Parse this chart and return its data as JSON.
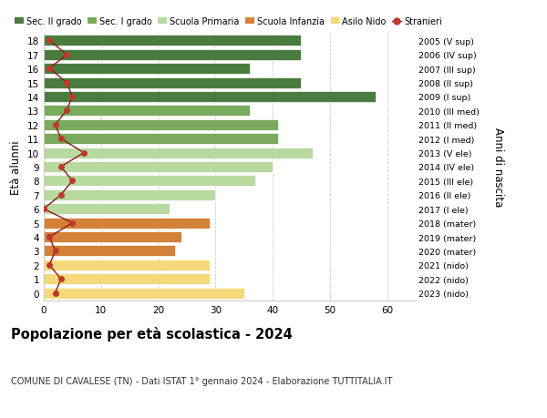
{
  "ages": [
    18,
    17,
    16,
    15,
    14,
    13,
    12,
    11,
    10,
    9,
    8,
    7,
    6,
    5,
    4,
    3,
    2,
    1,
    0
  ],
  "anni_nascita": [
    "2005 (V sup)",
    "2006 (IV sup)",
    "2007 (III sup)",
    "2008 (II sup)",
    "2009 (I sup)",
    "2010 (III med)",
    "2011 (II med)",
    "2012 (I med)",
    "2013 (V ele)",
    "2014 (IV ele)",
    "2015 (III ele)",
    "2016 (II ele)",
    "2017 (I ele)",
    "2018 (mater)",
    "2019 (mater)",
    "2020 (mater)",
    "2021 (nido)",
    "2022 (nido)",
    "2023 (nido)"
  ],
  "bar_values": [
    45,
    45,
    36,
    45,
    58,
    36,
    41,
    41,
    47,
    40,
    37,
    30,
    22,
    29,
    24,
    23,
    29,
    29,
    35
  ],
  "bar_colors": [
    "#4a7c3f",
    "#4a7c3f",
    "#4a7c3f",
    "#4a7c3f",
    "#4a7c3f",
    "#7aaa5e",
    "#7aaa5e",
    "#7aaa5e",
    "#b8d9a0",
    "#b8d9a0",
    "#b8d9a0",
    "#b8d9a0",
    "#b8d9a0",
    "#d4813a",
    "#d4813a",
    "#d4813a",
    "#f5d87a",
    "#f5d87a",
    "#f5d87a"
  ],
  "stranieri_values": [
    1,
    4,
    1,
    4,
    5,
    4,
    2,
    3,
    7,
    3,
    5,
    3,
    0,
    5,
    1,
    2,
    1,
    3,
    2
  ],
  "legend_labels": [
    "Sec. II grado",
    "Sec. I grado",
    "Scuola Primaria",
    "Scuola Infanzia",
    "Asilo Nido",
    "Stranieri"
  ],
  "legend_colors": [
    "#4a7c3f",
    "#7aaa5e",
    "#b8d9a0",
    "#d4813a",
    "#f5d87a",
    "#c0392b"
  ],
  "title": "Popolazione per età scolastica - 2024",
  "subtitle": "COMUNE DI CAVALESE (TN) - Dati ISTAT 1° gennaio 2024 - Elaborazione TUTTITALIA.IT",
  "ylabel_left": "Età alunni",
  "ylabel_right": "Anni di nascita",
  "xlim": [
    0,
    65
  ],
  "xticks": [
    0,
    10,
    20,
    30,
    40,
    50,
    60
  ],
  "bar_height": 0.78,
  "bg_color": "#ffffff",
  "grid_color": "#cccccc",
  "stranieri_color": "#c0392b",
  "stranieri_line_color": "#8b1a1a"
}
